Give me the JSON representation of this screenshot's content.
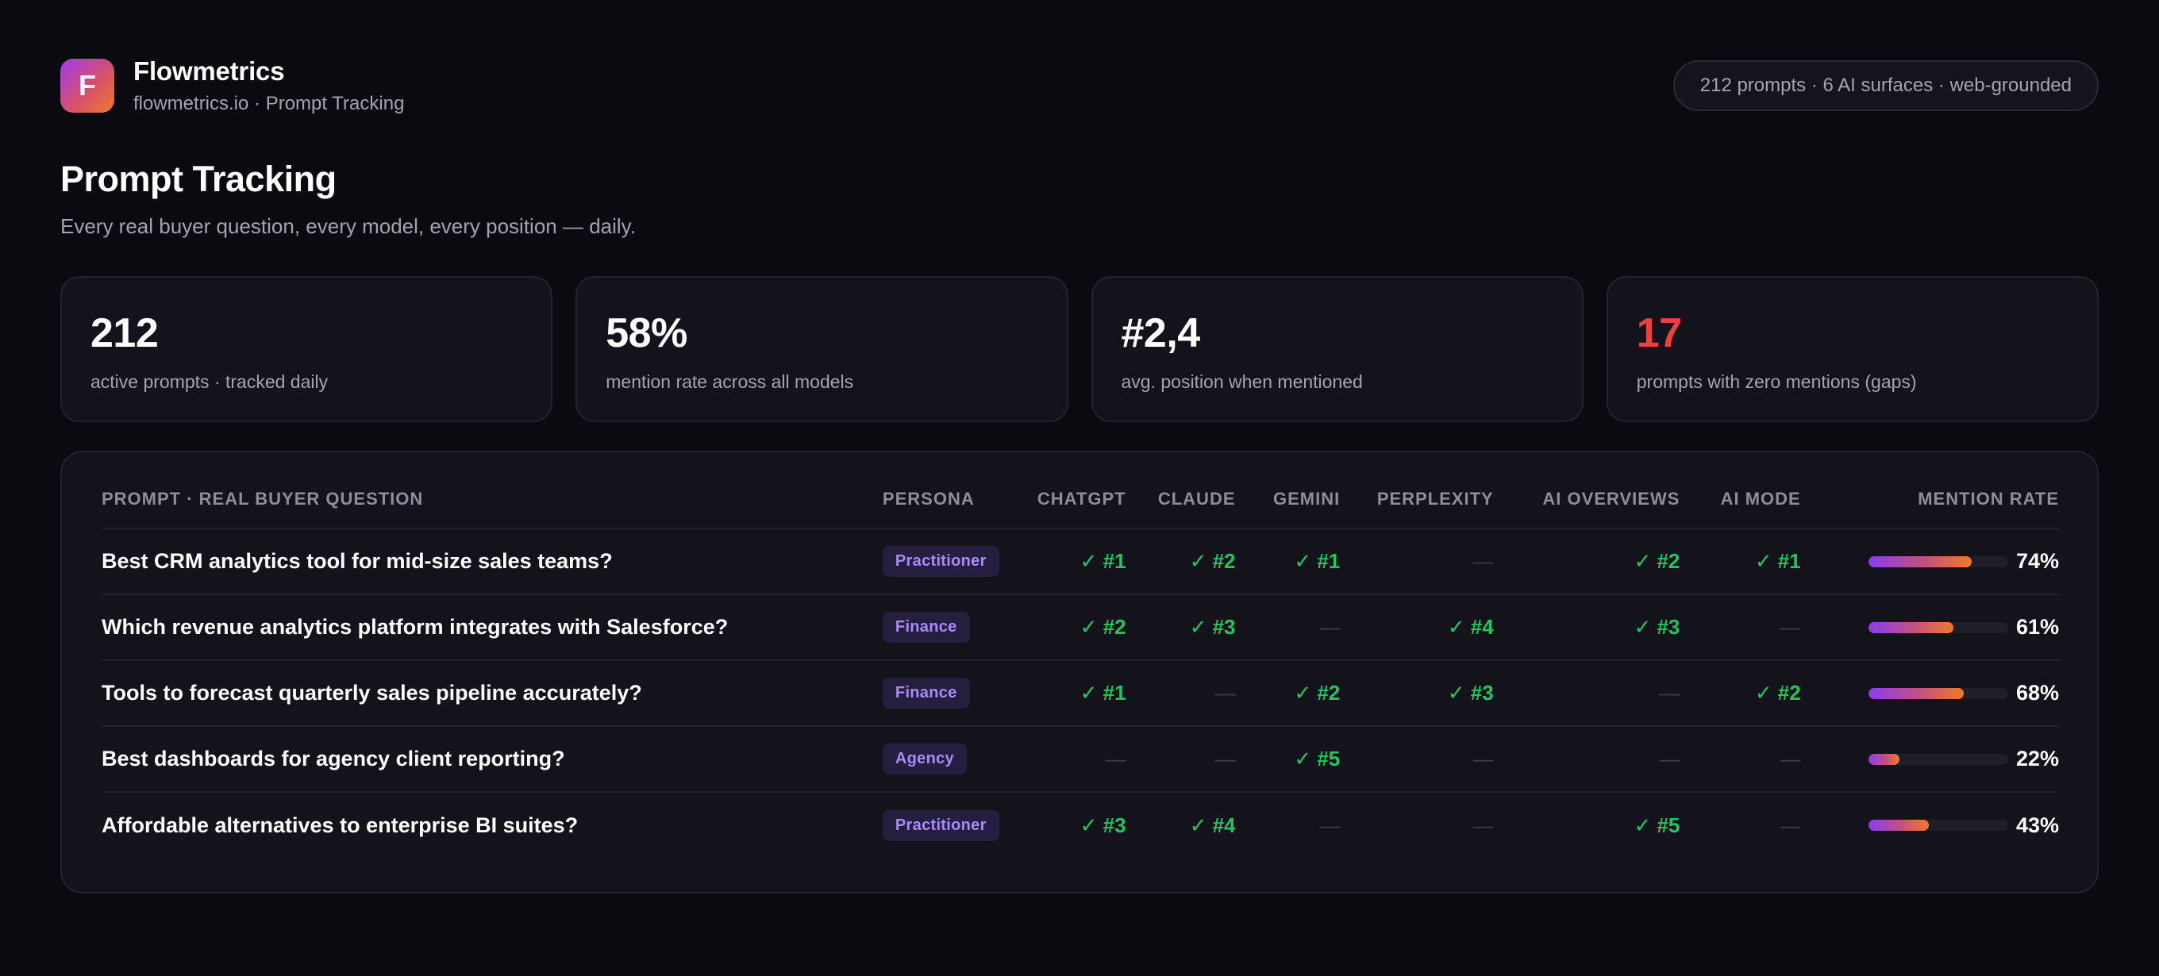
{
  "app": {
    "logo_letter": "F",
    "name": "Flowmetrics",
    "subtitle": "flowmetrics.io · Prompt Tracking",
    "summary_pill": "212 prompts · 6 AI surfaces · web-grounded"
  },
  "page": {
    "title": "Prompt Tracking",
    "subtitle": "Every real buyer question, every model, every position — daily."
  },
  "stats": [
    {
      "value": "212",
      "label": "active prompts · tracked daily"
    },
    {
      "value": "58%",
      "label": "mention rate across all models"
    },
    {
      "value": "#2,4",
      "label": "avg. position when mentioned"
    },
    {
      "value": "17",
      "label": "prompts with zero mentions (gaps)",
      "color": "#ef4040"
    }
  ],
  "table": {
    "headers": {
      "prompt": "Prompt · Real Buyer Question",
      "persona": "Persona",
      "chatgpt": "ChatGPT",
      "claude": "Claude",
      "gemini": "Gemini",
      "perplexity": "Perplexity",
      "ai_overviews": "AI Overviews",
      "ai_mode": "AI Mode",
      "mention_rate": "Mention Rate"
    },
    "rows": [
      {
        "prompt": "Best CRM analytics tool for mid-size sales teams?",
        "persona": "Practitioner",
        "chatgpt": "✓ #1",
        "claude": "✓ #2",
        "gemini": "✓ #1",
        "perplexity": "—",
        "ai_overviews": "✓ #2",
        "ai_mode": "✓ #1",
        "rate": 74,
        "rate_label": "74%"
      },
      {
        "prompt": "Which revenue analytics platform integrates with Salesforce?",
        "persona": "Finance",
        "chatgpt": "✓ #2",
        "claude": "✓ #3",
        "gemini": "—",
        "perplexity": "✓ #4",
        "ai_overviews": "✓ #3",
        "ai_mode": "—",
        "rate": 61,
        "rate_label": "61%"
      },
      {
        "prompt": "Tools to forecast quarterly sales pipeline accurately?",
        "persona": "Finance",
        "chatgpt": "✓ #1",
        "claude": "—",
        "gemini": "✓ #2",
        "perplexity": "✓ #3",
        "ai_overviews": "—",
        "ai_mode": "✓ #2",
        "rate": 68,
        "rate_label": "68%"
      },
      {
        "prompt": "Best dashboards for agency client reporting?",
        "persona": "Agency",
        "chatgpt": "—",
        "claude": "—",
        "gemini": "✓ #5",
        "perplexity": "—",
        "ai_overviews": "—",
        "ai_mode": "—",
        "rate": 22,
        "rate_label": "22%"
      },
      {
        "prompt": "Affordable alternatives to enterprise BI suites?",
        "persona": "Practitioner",
        "chatgpt": "✓ #3",
        "claude": "✓ #4",
        "gemini": "—",
        "perplexity": "—",
        "ai_overviews": "✓ #5",
        "ai_mode": "—",
        "rate": 43,
        "rate_label": "43%"
      }
    ]
  },
  "colors": {
    "background": "#0b0a10",
    "card": "#14131c",
    "hit": "#22c55e",
    "danger": "#ef4040",
    "badge_text": "#a78bfa",
    "accent_gradient_start": "#8b3df0",
    "accent_gradient_end": "#f27a2a"
  }
}
